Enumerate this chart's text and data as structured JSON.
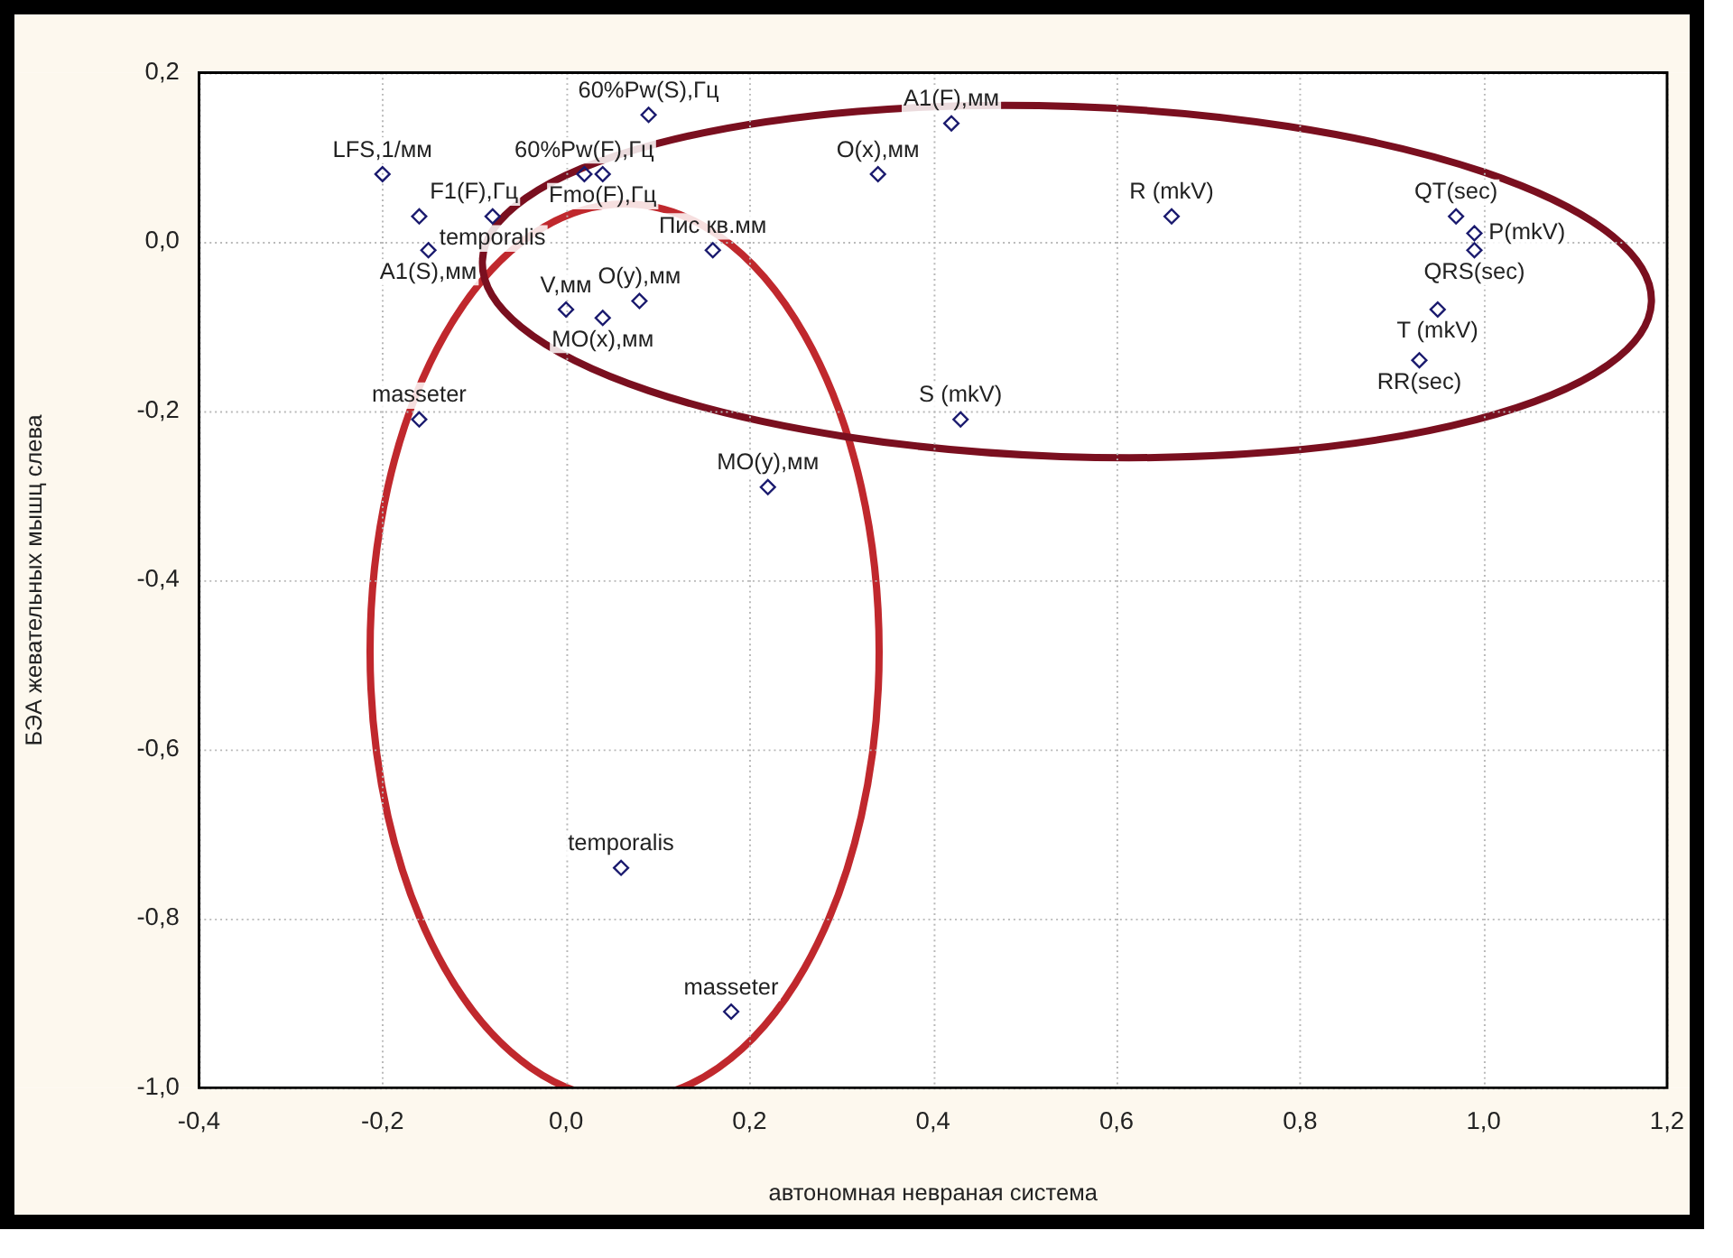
{
  "chart_data": {
    "type": "scatter",
    "xlabel": "автономная невраная система",
    "ylabel": "БЭА жевательных мышц слева",
    "series": [
      {
        "color": "#1a1a6e",
        "x": [
          0.09,
          -0.2,
          0.02,
          0.04,
          -0.16,
          -0.08,
          -0.15,
          0.16,
          0.0,
          0.04,
          0.08,
          -0.16,
          0.22,
          0.06,
          0.18,
          0.42,
          0.34,
          0.66,
          0.97,
          0.99,
          0.99,
          0.95,
          0.93,
          0.43
        ],
        "values": [
          0.15,
          0.08,
          0.08,
          0.08,
          0.03,
          0.03,
          -0.01,
          -0.01,
          -0.08,
          -0.09,
          -0.07,
          -0.21,
          -0.29,
          -0.74,
          -0.91,
          0.14,
          0.08,
          0.03,
          0.03,
          0.01,
          -0.01,
          -0.08,
          -0.14,
          -0.21
        ]
      }
    ],
    "annotations": [
      {
        "text": "60%Pw(S),Гц",
        "x": 0.09,
        "y": 0.15
      },
      {
        "text": "LFS,1/мм",
        "x": -0.2,
        "y": 0.08
      },
      {
        "text": "60%Pw(F),Гц",
        "x": 0.02,
        "y": 0.08
      },
      {
        "text": "Fmo(F),Гц",
        "x": 0.04,
        "y": 0.08
      },
      {
        "text": "F1(F),Гц",
        "x": -0.16,
        "y": 0.03
      },
      {
        "text": "temporalis",
        "x": -0.08,
        "y": 0.03
      },
      {
        "text": "A1(S),мм",
        "x": -0.15,
        "y": -0.01
      },
      {
        "text": "Пис кв.мм",
        "x": 0.16,
        "y": -0.01
      },
      {
        "text": "V,мм",
        "x": 0.0,
        "y": -0.08
      },
      {
        "text": "MO(x),мм",
        "x": 0.04,
        "y": -0.09
      },
      {
        "text": "O(y),мм",
        "x": 0.08,
        "y": -0.07
      },
      {
        "text": "masseter",
        "x": -0.16,
        "y": -0.21
      },
      {
        "text": "MO(y),мм",
        "x": 0.22,
        "y": -0.29
      },
      {
        "text": "temporalis",
        "x": 0.06,
        "y": -0.74
      },
      {
        "text": "masseter",
        "x": 0.18,
        "y": -0.91
      },
      {
        "text": "A1(F),мм",
        "x": 0.42,
        "y": 0.14
      },
      {
        "text": "O(x),мм",
        "x": 0.34,
        "y": 0.08
      },
      {
        "text": "R (mkV)",
        "x": 0.66,
        "y": 0.03
      },
      {
        "text": "QT(sec)",
        "x": 0.97,
        "y": 0.03
      },
      {
        "text": "P(mkV)",
        "x": 0.99,
        "y": 0.01
      },
      {
        "text": "QRS(sec)",
        "x": 0.99,
        "y": -0.01
      },
      {
        "text": "T (mkV)",
        "x": 0.95,
        "y": -0.08
      },
      {
        "text": "RR(sec)",
        "x": 0.93,
        "y": -0.14
      },
      {
        "text": "S (mkV)",
        "x": 0.43,
        "y": -0.21
      }
    ],
    "xlim": [
      -0.4,
      1.2
    ],
    "xticks": [
      {
        "value": -0.4,
        "label": "-0,4"
      },
      {
        "value": -0.2,
        "label": "-0,2"
      },
      {
        "value": 0,
        "label": "0,0"
      },
      {
        "value": 0.2,
        "label": "0,2"
      },
      {
        "value": 0.4,
        "label": "0,4"
      },
      {
        "value": 0.6,
        "label": "0,6"
      },
      {
        "value": 0.8,
        "label": "0,8"
      },
      {
        "value": 1.0,
        "label": "1,0"
      },
      {
        "value": 1.2,
        "label": "1,2"
      }
    ],
    "ylim": [
      -1.0,
      0.2
    ],
    "yticks": [
      {
        "value": -1.0,
        "label": "-1,0"
      },
      {
        "value": -0.8,
        "label": "-0,8"
      },
      {
        "value": -0.6,
        "label": "-0,6"
      },
      {
        "value": -0.4,
        "label": "-0,4"
      },
      {
        "value": -0.2,
        "label": "-0,2"
      },
      {
        "value": 0,
        "label": "0,0"
      },
      {
        "value": 0.2,
        "label": "0,2"
      }
    ],
    "grid": true,
    "marker": "diamond",
    "legend": false
  }
}
